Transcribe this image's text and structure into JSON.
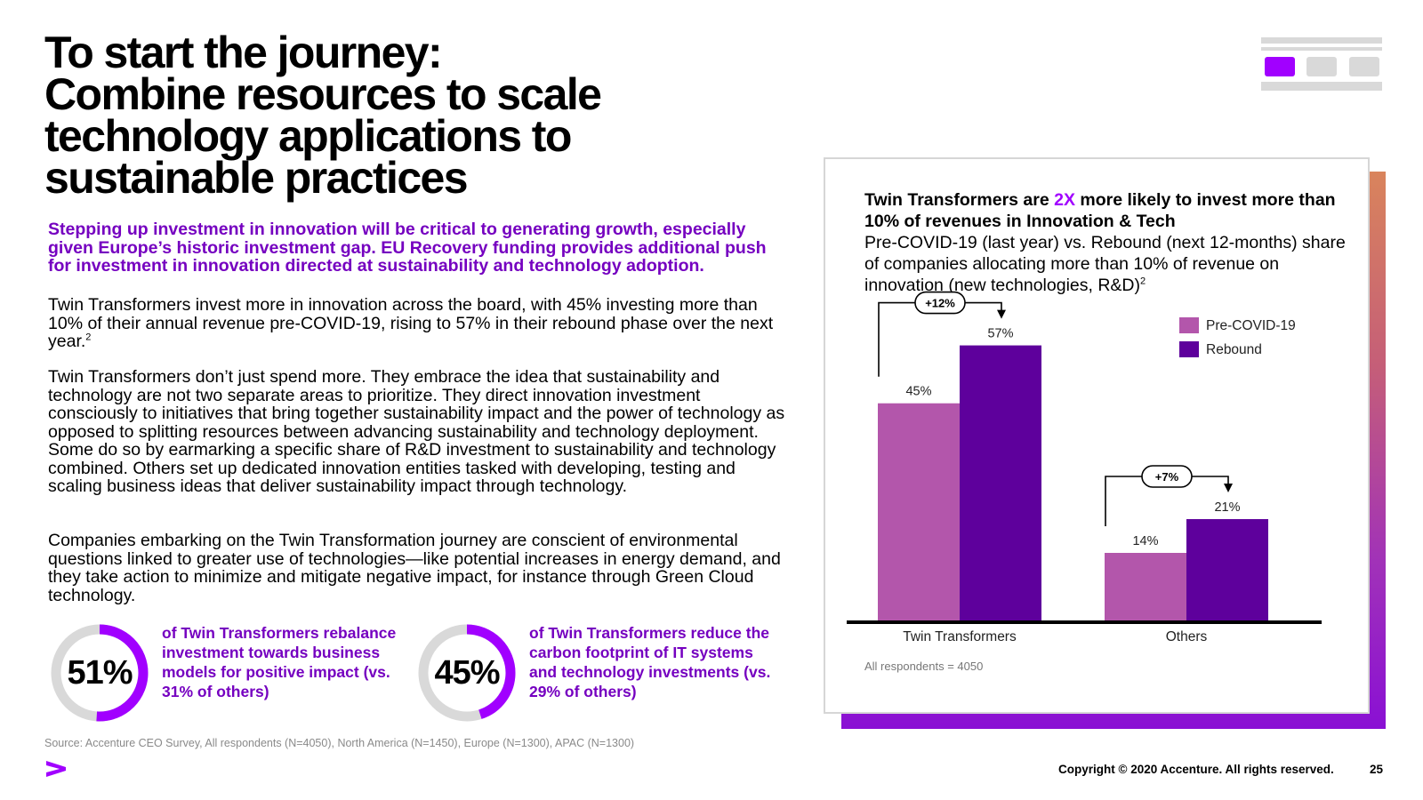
{
  "header": {
    "title_lines": [
      "To start the journey:",
      "Combine resources to scale",
      "technology applications to",
      "sustainable practices"
    ]
  },
  "body": {
    "lead": "Stepping up investment in innovation will be critical to generating growth, especially given Europe’s historic investment gap. EU Recovery funding provides additional push for investment in innovation directed at sustainability and technology adoption.",
    "para1": "Twin Transformers invest more in innovation across the board, with 45% investing more than 10% of their annual revenue pre-COVID-19, rising to 57% in their rebound phase over the next year.",
    "para1_footnote": "2",
    "para2": "Twin Transformers don’t just spend more. They embrace the idea that sustainability and technology are not two separate areas to prioritize. They direct innovation investment consciously to initiatives that bring together sustainability impact and the power of technology as opposed to splitting resources between advancing sustainability and technology deployment. Some do so by earmarking a specific share of R&D investment to sustainability and technology combined. Others set up dedicated innovation entities tasked with developing, testing and scaling business ideas that deliver sustainability impact through technology.",
    "para3": "Companies embarking on the Twin Transformation journey are conscient of environmental questions linked to greater use of technologies—like potential increases in energy demand, and they take action to minimize and mitigate negative impact, for instance through Green Cloud technology."
  },
  "stats": [
    {
      "value": "51%",
      "fraction": 0.51,
      "text": "of Twin Transformers rebalance investment towards business models for positive impact (vs. 31% of others)"
    },
    {
      "value": "45%",
      "fraction": 0.45,
      "text": "of Twin Transformers reduce the carbon footprint of IT systems and technology investments (vs. 29% of others)"
    }
  ],
  "footer": {
    "source": "Source: Accenture CEO Survey, All respondents (N=4050), North America (N=1450), Europe (N=1300), APAC (N=1300)",
    "copyright": "Copyright © 2020 Accenture. All rights reserved.",
    "page_number": "25"
  },
  "chart_title": {
    "part1": "Twin Transformers are ",
    "accent": "2X",
    "part2": " more likely to invest more than 10% of revenues in Innovation & Tech"
  },
  "chart_subtitle": "Pre-COVID-19 (last year) vs. Rebound (next 12-months) share of companies allocating more than 10% of revenue on innovation (new technologies, R&D)",
  "chart_subtitle_footnote": "2",
  "colors": {
    "accent": "#a100ff",
    "purple_text": "#7500c0",
    "pre_covid": "#b356ab",
    "rebound": "#5e009c",
    "ring_gray": "#d9d9d9",
    "ring_purple": "#a100ff",
    "nav_active": "#a100ff",
    "nav_inactive": "#d9d9d9"
  },
  "chart_data": {
    "type": "bar",
    "title": "Twin Transformers are 2X more likely to invest more than 10% of revenues in Innovation & Tech",
    "categories": [
      "Twin Transformers",
      "Others"
    ],
    "series": [
      {
        "name": "Pre-COVID-19",
        "values": [
          45,
          14
        ],
        "labels": [
          "45%",
          "14%"
        ]
      },
      {
        "name": "Rebound",
        "values": [
          57,
          21
        ],
        "labels": [
          "57%",
          "21%"
        ]
      }
    ],
    "changes": [
      "+12%",
      "+7%"
    ],
    "ylim": [
      0,
      70
    ],
    "legend": "top-right",
    "note": "All respondents = 4050",
    "xlabel": "",
    "ylabel": ""
  }
}
